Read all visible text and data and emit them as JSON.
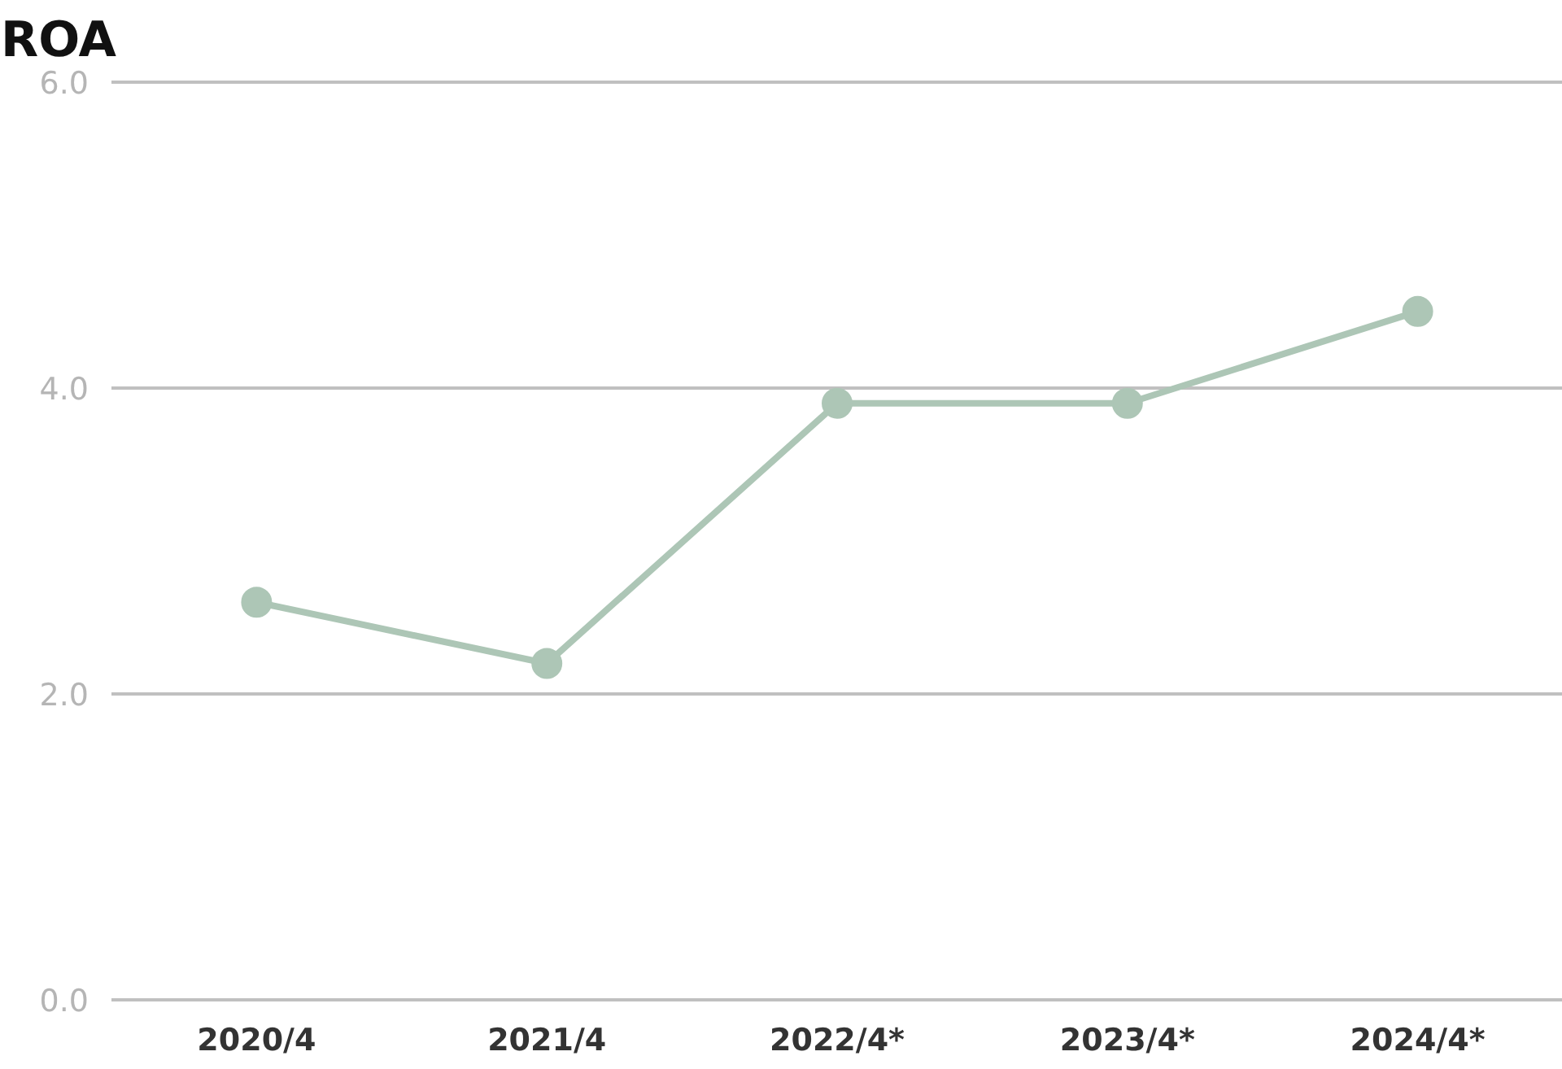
{
  "chart_data": {
    "type": "line",
    "title": "ROA",
    "categories": [
      "2020/4",
      "2021/4",
      "2022/4*",
      "2023/4*",
      "2024/4*"
    ],
    "series": [
      {
        "color": "#adc6b6",
        "values": [
          2.6,
          2.2,
          3.9,
          3.9,
          4.5
        ]
      }
    ],
    "ylim": [
      0,
      6
    ],
    "yticks": [
      {
        "value": 0,
        "label": "0.0"
      },
      {
        "value": 2,
        "label": "2.0"
      },
      {
        "value": 4,
        "label": "4.0"
      },
      {
        "value": 6,
        "label": "6.0"
      }
    ],
    "grid": "y",
    "marker": "circle",
    "line_style": "solid"
  }
}
